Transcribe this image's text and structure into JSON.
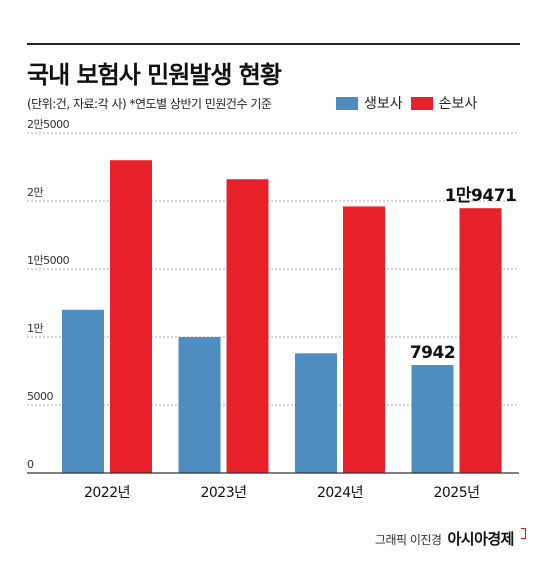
{
  "title": "국내 보험사 민원발생 현황",
  "subtitle": "(단위:건, 자료:각 사)  *연도별 상반기 민원건수 기준",
  "credit": {
    "text": "그래픽 이진경",
    "brand": "아시아경제"
  },
  "colors": {
    "life": "#4f8cc0",
    "nonlife": "#e8202a",
    "grid": "#a8a8a8",
    "axis": "#333333"
  },
  "chart_data": {
    "type": "bar",
    "categories": [
      "2022년",
      "2023년",
      "2024년",
      "2025년"
    ],
    "series": [
      {
        "name": "생보사",
        "values": [
          12000,
          10000,
          8800,
          7942
        ]
      },
      {
        "name": "손보사",
        "values": [
          23000,
          21600,
          19600,
          19471
        ]
      }
    ],
    "ylim": [
      0,
      25000
    ],
    "yticks": [
      {
        "value": 0,
        "label": "0"
      },
      {
        "value": 5000,
        "label": "5000"
      },
      {
        "value": 10000,
        "label": "1만"
      },
      {
        "value": 15000,
        "label": "1만5000"
      },
      {
        "value": 20000,
        "label": "2만"
      },
      {
        "value": 25000,
        "label": "2만5000"
      }
    ],
    "data_labels": [
      {
        "series": 0,
        "index": 3,
        "text": "7942"
      },
      {
        "series": 1,
        "index": 3,
        "text": "1만9471"
      }
    ],
    "grid": true,
    "legend_position": "top-right"
  }
}
